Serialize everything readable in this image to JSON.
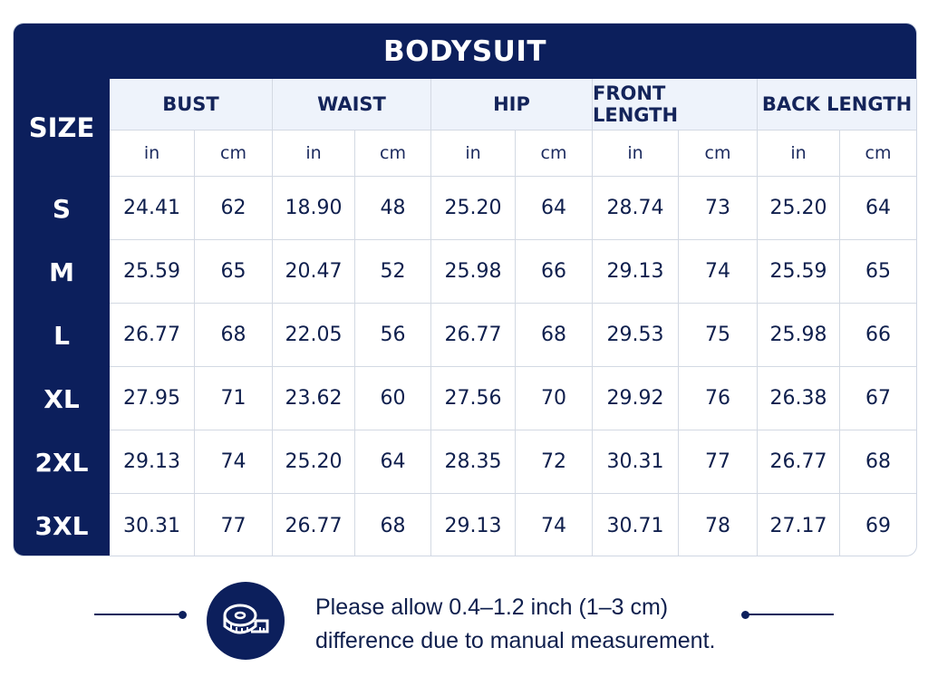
{
  "title": "BODYSUIT",
  "size_header": "SIZE",
  "measurements": [
    "BUST",
    "WAIST",
    "HIP",
    "FRONT LENGTH",
    "BACK LENGTH"
  ],
  "units": [
    "in",
    "cm"
  ],
  "rows": [
    {
      "size": "S",
      "values": [
        "24.41",
        "62",
        "18.90",
        "48",
        "25.20",
        "64",
        "28.74",
        "73",
        "25.20",
        "64"
      ]
    },
    {
      "size": "M",
      "values": [
        "25.59",
        "65",
        "20.47",
        "52",
        "25.98",
        "66",
        "29.13",
        "74",
        "25.59",
        "65"
      ]
    },
    {
      "size": "L",
      "values": [
        "26.77",
        "68",
        "22.05",
        "56",
        "26.77",
        "68",
        "29.53",
        "75",
        "25.98",
        "66"
      ]
    },
    {
      "size": "XL",
      "values": [
        "27.95",
        "71",
        "23.62",
        "60",
        "27.56",
        "70",
        "29.92",
        "76",
        "26.38",
        "67"
      ]
    },
    {
      "size": "2XL",
      "values": [
        "29.13",
        "74",
        "25.20",
        "64",
        "28.35",
        "72",
        "30.31",
        "77",
        "26.77",
        "68"
      ]
    },
    {
      "size": "3XL",
      "values": [
        "30.31",
        "77",
        "26.77",
        "68",
        "29.13",
        "74",
        "30.71",
        "78",
        "27.17",
        "69"
      ]
    }
  ],
  "note": {
    "line1": "Please allow 0.4–1.2 inch (1–3 cm)",
    "line2": "difference due to manual measurement.",
    "icon": "measuring-tape-icon"
  },
  "colors": {
    "navy": "#0c1f5c",
    "header_bg": "#eef3fb",
    "grid_line": "#d3d9e3"
  }
}
